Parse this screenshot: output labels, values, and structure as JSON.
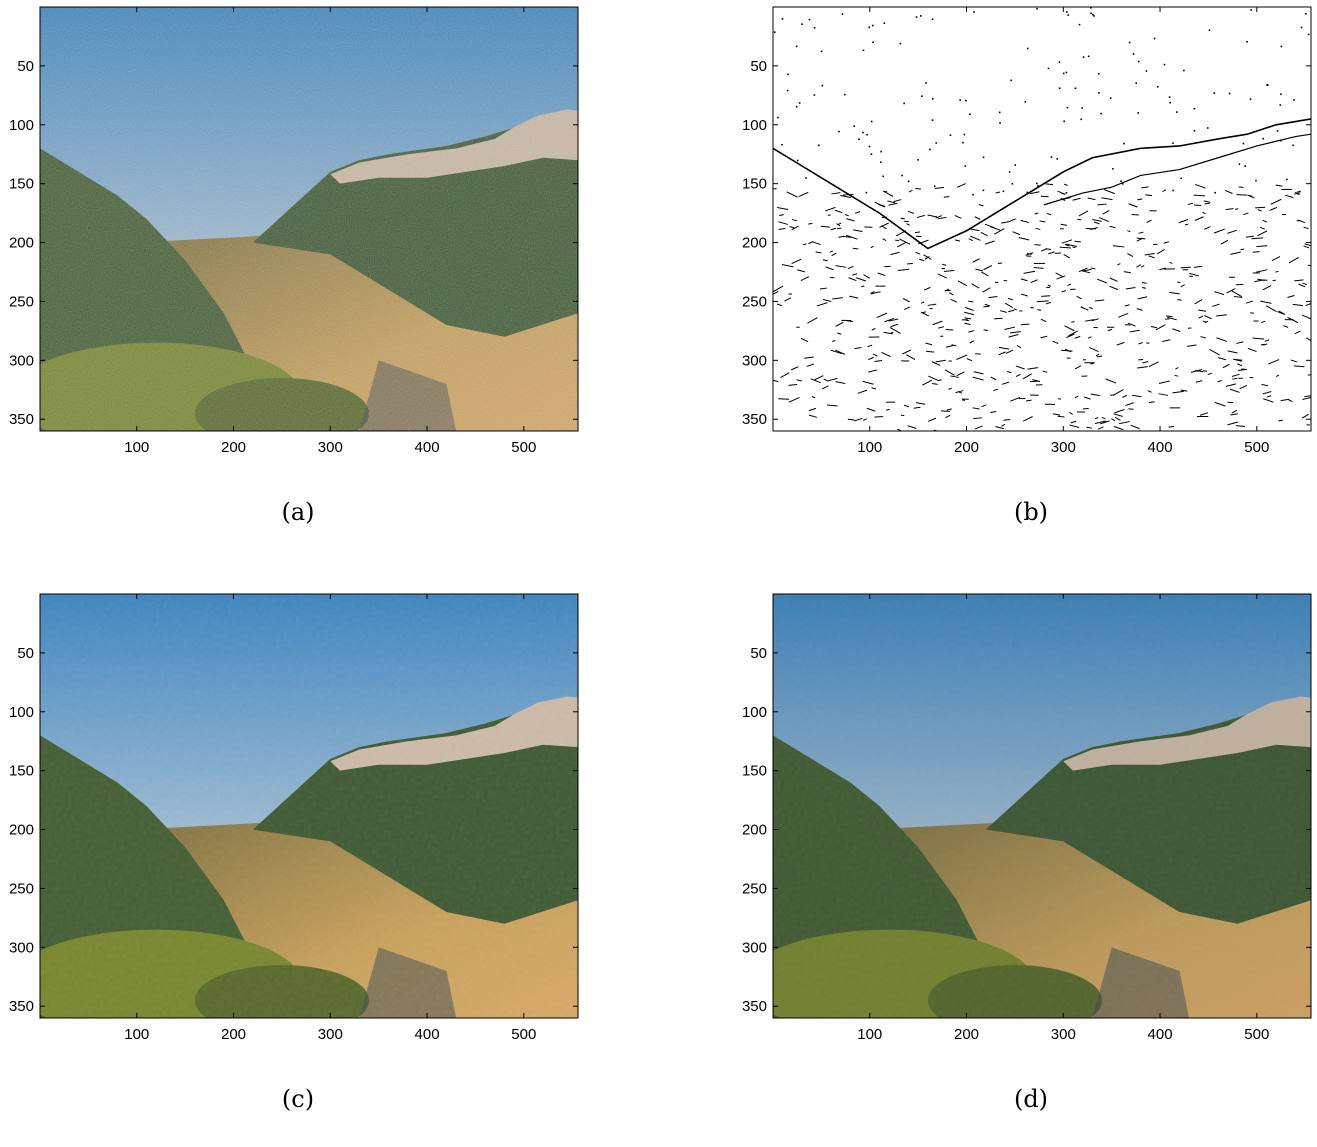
{
  "figure": {
    "x_ticks": [
      "100",
      "200",
      "300",
      "400",
      "500"
    ],
    "y_ticks": [
      "50",
      "100",
      "150",
      "200",
      "250",
      "300",
      "350"
    ],
    "panels": [
      {
        "id": "a",
        "caption": "(a)",
        "content": "noisy-photo"
      },
      {
        "id": "b",
        "caption": "(b)",
        "content": "edge-map"
      },
      {
        "id": "c",
        "caption": "(c)",
        "content": "smoothed-photo"
      },
      {
        "id": "d",
        "caption": "(d)",
        "content": "restored-photo"
      }
    ]
  }
}
